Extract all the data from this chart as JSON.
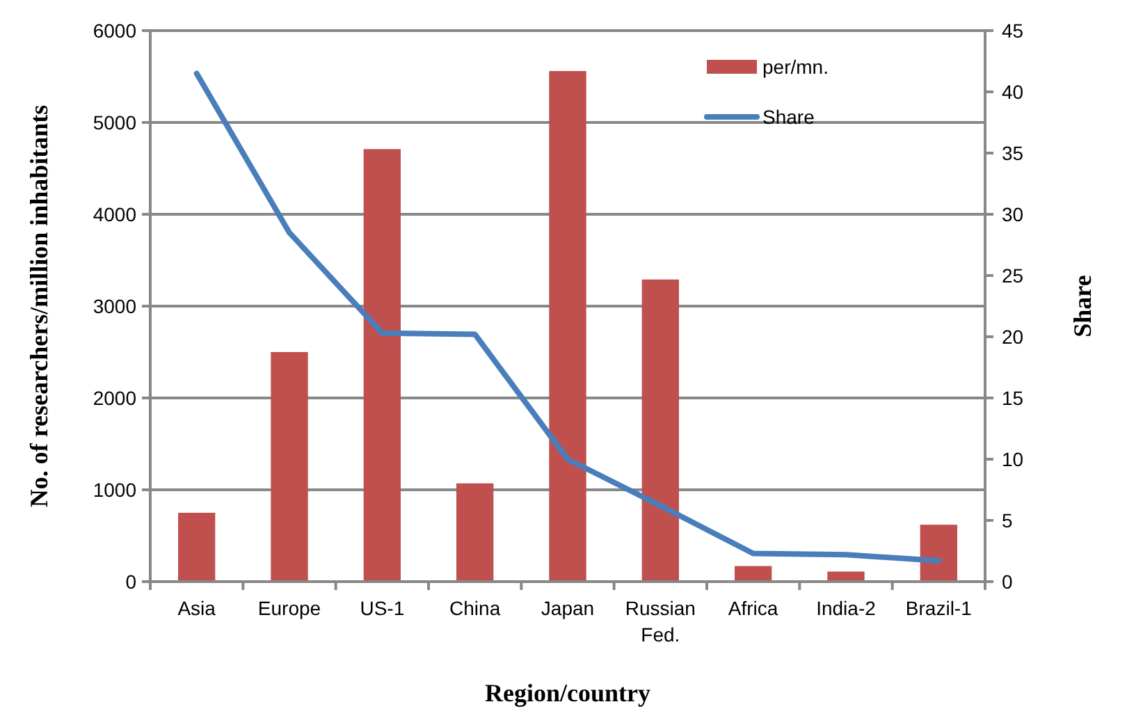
{
  "chart_data": {
    "type": "bar",
    "xlabel": "Region/country",
    "ylabel": "No. of researchers/million inhabitants",
    "y2label": "Share",
    "categories": [
      "Asia",
      "Europe",
      "US-1",
      "China",
      "Japan",
      "Russian Fed.",
      "Africa",
      "India-2",
      "Brazil-1"
    ],
    "series": [
      {
        "name": "per/mn.",
        "color": "#c0504d",
        "values": [
          750,
          2500,
          4710,
          1070,
          5560,
          3290,
          170,
          110,
          620
        ]
      },
      {
        "name": "Share",
        "type": "line",
        "axis": "y2",
        "color": "#4a7ebb",
        "values": [
          41.5,
          28.5,
          20.3,
          20.2,
          10.0,
          6.2,
          2.3,
          2.2,
          1.7
        ]
      }
    ],
    "ylim": [
      0,
      6000
    ],
    "yticks": [
      0,
      1000,
      2000,
      3000,
      4000,
      5000,
      6000
    ],
    "y2lim": [
      0,
      45
    ],
    "y2ticks": [
      0,
      5,
      10,
      15,
      20,
      25,
      30,
      35,
      40,
      45
    ],
    "grid": "y",
    "legend": "top right"
  }
}
